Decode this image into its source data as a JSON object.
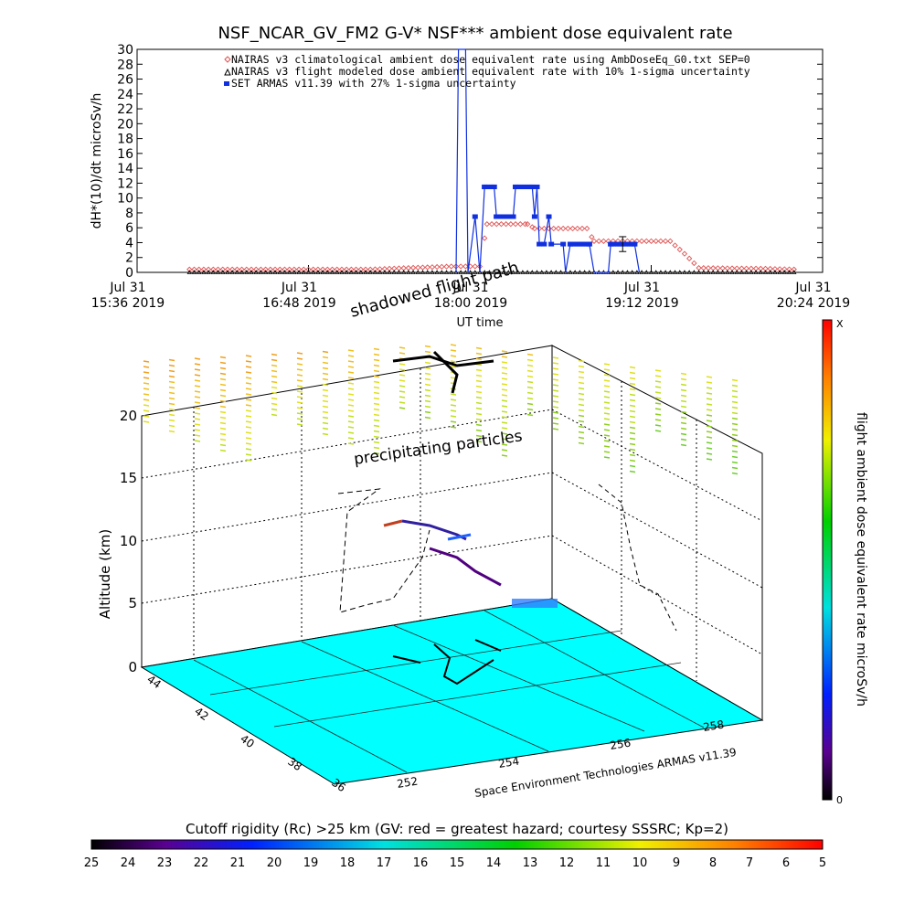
{
  "chart_data": [
    {
      "type": "line",
      "title": "NSF_NCAR_GV_FM2 G-V* NSF*** ambient dose equivalent rate",
      "ylabel": "dH*(10)/dt microSv/h",
      "xlabel": "UT time",
      "ylim": [
        0,
        30
      ],
      "yticks": [
        "0",
        "2",
        "4",
        "6",
        "8",
        "10",
        "12",
        "14",
        "16",
        "18",
        "20",
        "22",
        "24",
        "26",
        "28",
        "30"
      ],
      "xlim": [
        "2019-07-31T15:36",
        "2019-07-31T20:24"
      ],
      "xticks": [
        {
          "line1": "Jul 31",
          "line2": "15:36 2019",
          "t": "2019-07-31T15:36"
        },
        {
          "line1": "Jul 31",
          "line2": "16:48 2019",
          "t": "2019-07-31T16:48"
        },
        {
          "line1": "Jul 31",
          "line2": "18:00 2019",
          "t": "2019-07-31T18:00"
        },
        {
          "line1": "Jul 31",
          "line2": "19:12 2019",
          "t": "2019-07-31T19:12"
        },
        {
          "line1": "Jul 31",
          "line2": "20:24 2019",
          "t": "2019-07-31T20:24"
        }
      ],
      "legend_placement": "top",
      "series": [
        {
          "name": "NAIRAS v3 climatological ambient dose equivalent rate using AmbDoseEq_G0.txt SEP=0",
          "color": "#e05050",
          "marker": "diamond",
          "points": [
            [
              "2019-07-31T15:58",
              0.4
            ],
            [
              "2019-07-31T16:20",
              0.4
            ],
            [
              "2019-07-31T16:48",
              0.4
            ],
            [
              "2019-07-31T17:14",
              0.4
            ],
            [
              "2019-07-31T17:30",
              0.6
            ],
            [
              "2019-07-31T17:48",
              0.8
            ],
            [
              "2019-07-31T18:00",
              0.8
            ],
            [
              "2019-07-31T18:03",
              6.5
            ],
            [
              "2019-07-31T18:20",
              6.5
            ],
            [
              "2019-07-31T18:23",
              5.9
            ],
            [
              "2019-07-31T18:45",
              5.9
            ],
            [
              "2019-07-31T18:48",
              4.2
            ],
            [
              "2019-07-31T19:20",
              4.2
            ],
            [
              "2019-07-31T19:26",
              2.5
            ],
            [
              "2019-07-31T19:32",
              0.6
            ],
            [
              "2019-07-31T20:00",
              0.5
            ],
            [
              "2019-07-31T20:12",
              0.4
            ]
          ]
        },
        {
          "name": "NAIRAS v3 flight modeled dose ambient equivalent rate with 10% 1-sigma uncertainty",
          "color": "#000000",
          "marker": "triangle",
          "points": [
            [
              "2019-07-31T15:58",
              0
            ],
            [
              "2019-07-31T16:48",
              0
            ],
            [
              "2019-07-31T17:40",
              0
            ],
            [
              "2019-07-31T18:30",
              0
            ],
            [
              "2019-07-31T19:12",
              0
            ],
            [
              "2019-07-31T20:12",
              0
            ]
          ]
        },
        {
          "name": "SET ARMAS v11.39 with 27% 1-sigma uncertainty",
          "color": "#1030e0",
          "marker": "square",
          "points": [
            [
              "2019-07-31T17:50",
              0
            ],
            [
              "2019-07-31T17:51",
              30
            ],
            [
              "2019-07-31T17:54",
              30
            ],
            [
              "2019-07-31T17:55",
              0
            ],
            [
              "2019-07-31T17:58",
              7.5
            ],
            [
              "2019-07-31T18:00",
              0
            ],
            [
              "2019-07-31T18:02",
              11.5
            ],
            [
              "2019-07-31T18:06",
              11.5
            ],
            [
              "2019-07-31T18:07",
              7.5
            ],
            [
              "2019-07-31T18:14",
              7.5
            ],
            [
              "2019-07-31T18:15",
              11.5
            ],
            [
              "2019-07-31T18:22",
              11.5
            ],
            [
              "2019-07-31T18:23",
              7.5
            ],
            [
              "2019-07-31T18:24",
              11.5
            ],
            [
              "2019-07-31T18:25",
              3.8
            ],
            [
              "2019-07-31T18:27",
              3.8
            ],
            [
              "2019-07-31T18:29",
              7.5
            ],
            [
              "2019-07-31T18:30",
              3.8
            ],
            [
              "2019-07-31T18:35",
              3.8
            ],
            [
              "2019-07-31T18:36",
              0
            ],
            [
              "2019-07-31T18:38",
              3.8
            ],
            [
              "2019-07-31T18:46",
              3.8
            ],
            [
              "2019-07-31T18:48",
              0
            ],
            [
              "2019-07-31T18:54",
              0
            ],
            [
              "2019-07-31T18:55",
              3.8
            ],
            [
              "2019-07-31T19:05",
              3.8
            ],
            [
              "2019-07-31T19:07",
              0
            ]
          ],
          "error_bar": {
            "t": "2019-07-31T19:00",
            "y": 3.8,
            "err": 1.0
          }
        }
      ]
    },
    {
      "type": "scatter",
      "variant": "3d surface map",
      "annotations": [
        "shadowed flight path",
        "precipitating particles"
      ],
      "zlabel": "Altitude (km)",
      "zticks": [
        "0",
        "5",
        "10",
        "15",
        "20"
      ],
      "lat_ticks": [
        "44",
        "42",
        "40",
        "38",
        "36"
      ],
      "lon_ticks": [
        "252",
        "254",
        "256",
        "258"
      ],
      "credit": "Space Environment Technologies ARMAS v11.39",
      "right_colorbar": {
        "label": "flight ambient dose equivalent rate microSv/h",
        "top_label": "X",
        "bottom_label": "0"
      },
      "bottom_colorbar": {
        "title": "Cutoff rigidity (Rc) >25 km (GV: red = greatest hazard; courtesy SSSRC; Kp=2)",
        "ticks": [
          "25",
          "24",
          "23",
          "22",
          "21",
          "20",
          "19",
          "18",
          "17",
          "16",
          "15",
          "14",
          "13",
          "12",
          "11",
          "10",
          "9",
          "8",
          "7",
          "6",
          "5"
        ]
      }
    }
  ]
}
